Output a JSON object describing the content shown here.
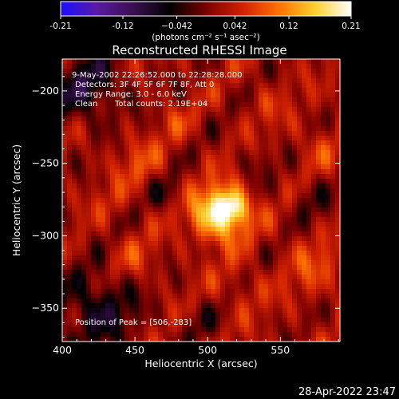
{
  "chart_data": {
    "type": "heatmap",
    "title": "Reconstructed RHESSI Image",
    "xlabel": "Heliocentric X (arcsec)",
    "ylabel": "Heliocentric Y (arcsec)",
    "xlim": [
      400,
      591
    ],
    "ylim": [
      -373,
      -178
    ],
    "x_ticks": [
      400,
      450,
      500,
      550
    ],
    "y_ticks": [
      -200,
      -250,
      -300,
      -350
    ],
    "colorbar": {
      "range": [
        -0.21,
        0.21
      ],
      "tick_values": [
        -0.21,
        -0.12,
        -0.042,
        0.042,
        0.12,
        0.21
      ],
      "tick_labels": [
        "-0.21",
        "-0.12",
        "−0.042",
        "0.042",
        "0.12",
        "0.21"
      ],
      "units_text": "(photons cm⁻² s⁻¹ asec⁻²)",
      "colormap": [
        "#1a10ff",
        "#5a1aa0",
        "#3a1050",
        "#000000",
        "#7a0000",
        "#d02000",
        "#ff7000",
        "#ffd030",
        "#ffffff"
      ]
    },
    "annotations": {
      "time_range": "9-May-2002 22:26:52.000 to 22:28:28.000",
      "detectors": "Detectors: 3F 4F 5F 6F 7F 8F, Att 0",
      "energy_range": "Energy Range: 3.0 - 6.0 keV",
      "clean": "Clean",
      "total_counts": "Total counts: 2.19E+04",
      "peak": "Position of Peak = [506,-283]"
    },
    "peak": [
      506,
      -283
    ],
    "timestamp": "28-Apr-2022 23:47"
  }
}
